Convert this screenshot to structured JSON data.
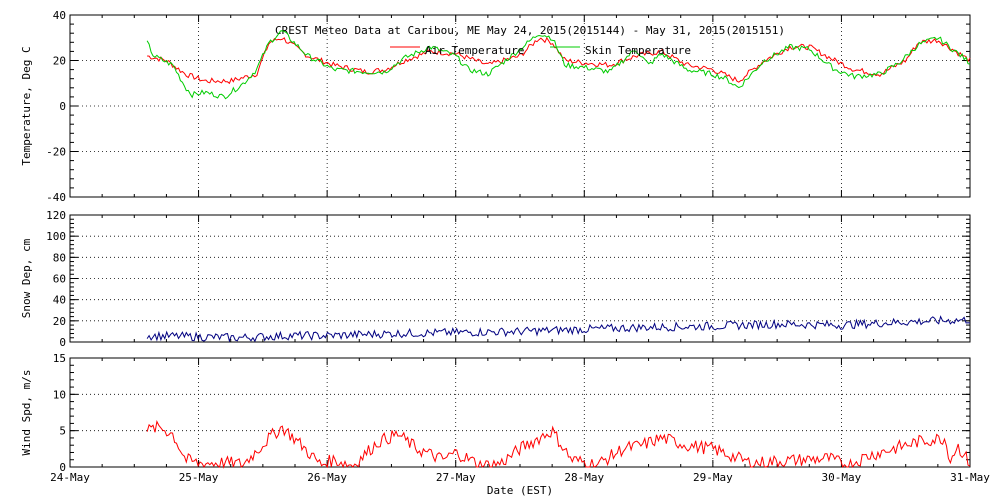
{
  "chart_data": [
    {
      "type": "line",
      "title": "CREST Meteo Data at Caribou, ME   May 24, 2015(2015144) - May 31, 2015(2015151)",
      "ylabel": "Temperature, Deg C",
      "ylim": [
        -40,
        40
      ],
      "y_ticks": [
        "40",
        "20",
        "0",
        "-20",
        "-40"
      ],
      "grid": true,
      "legend": "top-center",
      "series": [
        {
          "name": "Air Temperature",
          "color": "#ff0000",
          "x": [
            24.6,
            24.75,
            24.9,
            25.05,
            25.25,
            25.45,
            25.55,
            25.65,
            25.85,
            26.05,
            26.3,
            26.45,
            26.6,
            26.8,
            27.0,
            27.25,
            27.5,
            27.65,
            27.75,
            27.85,
            28.0,
            28.2,
            28.4,
            28.6,
            28.8,
            29.0,
            29.2,
            29.4,
            29.6,
            29.75,
            29.95,
            30.1,
            30.3,
            30.5,
            30.6,
            30.75,
            31.0
          ],
          "y": [
            22,
            20,
            14,
            11,
            11,
            14,
            28,
            30,
            22,
            18,
            15,
            16,
            20,
            24,
            23,
            18,
            22,
            30,
            28,
            20,
            19,
            18,
            22,
            24,
            18,
            16,
            11,
            20,
            26,
            26,
            20,
            16,
            14,
            20,
            28,
            29,
            20
          ]
        },
        {
          "name": "Skin Temperature",
          "color": "#00cc00",
          "x": [
            24.6,
            24.65,
            24.8,
            24.9,
            24.95,
            25.05,
            25.2,
            25.35,
            25.45,
            25.55,
            25.65,
            25.85,
            26.05,
            26.3,
            26.45,
            26.6,
            26.8,
            27.0,
            27.1,
            27.25,
            27.5,
            27.65,
            27.75,
            27.85,
            28.0,
            28.2,
            28.4,
            28.5,
            28.6,
            28.8,
            29.0,
            29.1,
            29.2,
            29.4,
            29.6,
            29.75,
            29.95,
            30.1,
            30.3,
            30.45,
            30.6,
            30.75,
            31.0
          ],
          "y": [
            28,
            22,
            18,
            8,
            5,
            6,
            4,
            10,
            16,
            28,
            33,
            22,
            16,
            15,
            15,
            21,
            26,
            22,
            16,
            14,
            25,
            32,
            30,
            18,
            17,
            15,
            25,
            18,
            23,
            16,
            14,
            12,
            8,
            20,
            26,
            25,
            16,
            13,
            14,
            19,
            27,
            30,
            19
          ]
        }
      ]
    },
    {
      "type": "line",
      "ylabel": "Snow Dep, cm",
      "ylim": [
        0,
        120
      ],
      "y_ticks": [
        "120",
        "100",
        "80",
        "60",
        "40",
        "20",
        "0"
      ],
      "grid": true,
      "series": [
        {
          "color": "#000080",
          "x": [
            24.6,
            25.0,
            25.3,
            25.7,
            26.0,
            26.5,
            27.0,
            27.5,
            28.0,
            28.5,
            29.0,
            29.5,
            30.0,
            30.5,
            31.0
          ],
          "y": [
            6,
            5,
            4,
            6,
            6,
            8,
            9,
            10,
            12,
            14,
            15,
            17,
            16,
            19,
            21
          ],
          "noise": 4
        }
      ]
    },
    {
      "type": "line",
      "ylabel": "Wind Spd, m/s",
      "xlabel": "Date (EST)",
      "ylim": [
        0,
        15
      ],
      "y_ticks": [
        "15",
        "10",
        "5",
        "0"
      ],
      "x_ticks": [
        "24-May",
        "25-May",
        "26-May",
        "27-May",
        "28-May",
        "29-May",
        "30-May",
        "31-May"
      ],
      "xlim": [
        24,
        31
      ],
      "grid": true,
      "series": [
        {
          "color": "#ff0000",
          "x": [
            24.6,
            24.7,
            24.8,
            24.9,
            25.0,
            25.2,
            25.35,
            25.55,
            25.65,
            25.8,
            25.95,
            26.05,
            26.2,
            26.4,
            26.55,
            26.7,
            26.9,
            27.0,
            27.2,
            27.35,
            27.5,
            27.65,
            27.75,
            27.9,
            28.1,
            28.3,
            28.45,
            28.6,
            28.8,
            29.0,
            29.3,
            29.5,
            29.7,
            29.9,
            30.05,
            30.2,
            30.4,
            30.6,
            30.8,
            30.85,
            30.9,
            31.0
          ],
          "y": [
            5,
            5.5,
            4.5,
            1,
            0.5,
            0.6,
            0.4,
            4,
            5.5,
            3,
            0.3,
            1,
            0.2,
            3.5,
            4.5,
            2.5,
            1,
            2,
            0.2,
            0.5,
            2.5,
            4,
            5,
            1,
            0.3,
            2.5,
            3,
            4,
            3,
            2.5,
            0.5,
            0.8,
            1,
            1.2,
            0.2,
            1.5,
            2.5,
            3.5,
            4,
            1,
            3,
            0.5
          ],
          "noise": 0.9
        }
      ]
    }
  ]
}
